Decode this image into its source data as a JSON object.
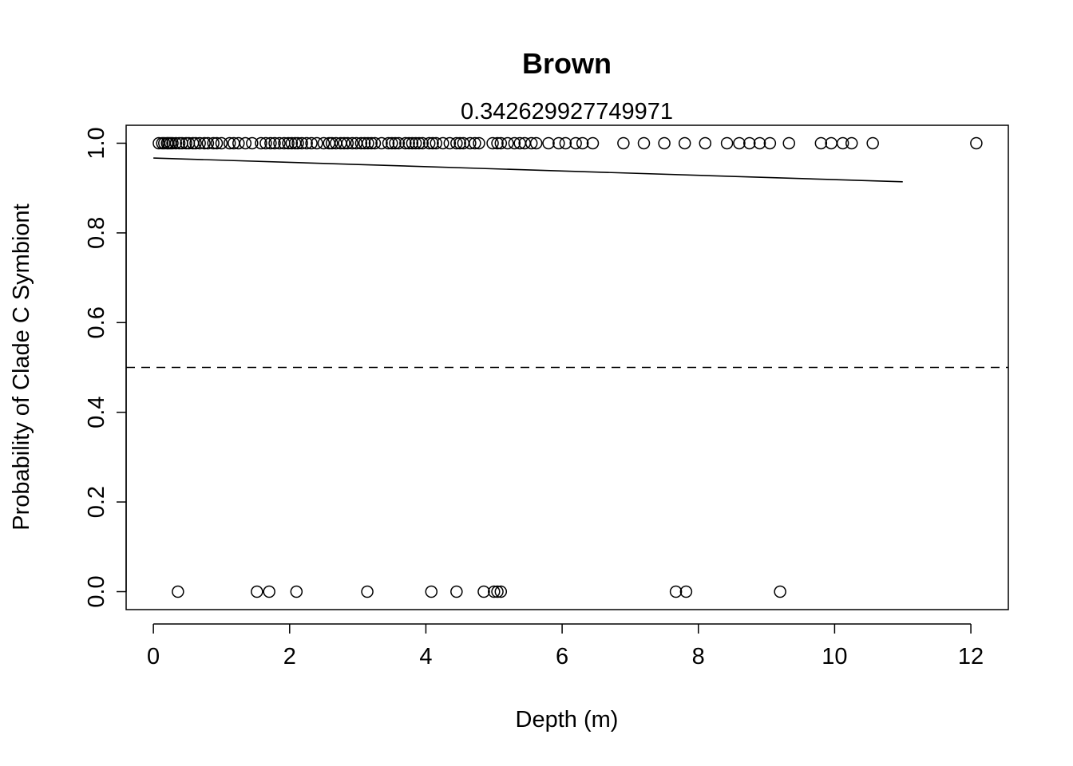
{
  "chart_data": {
    "type": "scatter",
    "title": "Brown",
    "subtitle": "0.342629927749971",
    "xlabel": "Depth (m)",
    "ylabel": "Probability of Clade C Symbiont",
    "xlim": [
      -0.4,
      12.55
    ],
    "ylim": [
      -0.04,
      1.04
    ],
    "x_ticks": [
      0,
      2,
      4,
      6,
      8,
      10,
      12
    ],
    "y_ticks": [
      0.0,
      0.2,
      0.4,
      0.6,
      0.8,
      1.0
    ],
    "x_tick_labels": [
      "0",
      "2",
      "4",
      "6",
      "8",
      "10",
      "12"
    ],
    "y_tick_labels": [
      "0.0",
      "0.2",
      "0.4",
      "0.6",
      "0.8",
      "1.0"
    ],
    "grid": false,
    "series": [
      {
        "kind": "points",
        "marker": "open-circle",
        "points": [
          [
            0.08,
            1
          ],
          [
            0.13,
            1
          ],
          [
            0.16,
            1
          ],
          [
            0.2,
            1
          ],
          [
            0.22,
            1
          ],
          [
            0.25,
            1
          ],
          [
            0.28,
            1
          ],
          [
            0.33,
            1
          ],
          [
            0.38,
            1
          ],
          [
            0.42,
            1
          ],
          [
            0.48,
            1
          ],
          [
            0.52,
            1
          ],
          [
            0.58,
            1
          ],
          [
            0.62,
            1
          ],
          [
            0.68,
            1
          ],
          [
            0.75,
            1
          ],
          [
            0.8,
            1
          ],
          [
            0.88,
            1
          ],
          [
            0.93,
            1
          ],
          [
            1.0,
            1
          ],
          [
            1.12,
            1
          ],
          [
            1.18,
            1
          ],
          [
            1.25,
            1
          ],
          [
            1.35,
            1
          ],
          [
            1.45,
            1
          ],
          [
            1.58,
            1
          ],
          [
            1.65,
            1
          ],
          [
            1.72,
            1
          ],
          [
            1.78,
            1
          ],
          [
            1.85,
            1
          ],
          [
            1.92,
            1
          ],
          [
            1.98,
            1
          ],
          [
            2.03,
            1
          ],
          [
            2.08,
            1
          ],
          [
            2.12,
            1
          ],
          [
            2.18,
            1
          ],
          [
            2.25,
            1
          ],
          [
            2.32,
            1
          ],
          [
            2.4,
            1
          ],
          [
            2.5,
            1
          ],
          [
            2.58,
            1
          ],
          [
            2.62,
            1
          ],
          [
            2.68,
            1
          ],
          [
            2.75,
            1
          ],
          [
            2.8,
            1
          ],
          [
            2.85,
            1
          ],
          [
            2.92,
            1
          ],
          [
            2.98,
            1
          ],
          [
            3.05,
            1
          ],
          [
            3.1,
            1
          ],
          [
            3.15,
            1
          ],
          [
            3.2,
            1
          ],
          [
            3.25,
            1
          ],
          [
            3.35,
            1
          ],
          [
            3.45,
            1
          ],
          [
            3.5,
            1
          ],
          [
            3.55,
            1
          ],
          [
            3.6,
            1
          ],
          [
            3.7,
            1
          ],
          [
            3.75,
            1
          ],
          [
            3.8,
            1
          ],
          [
            3.85,
            1
          ],
          [
            3.9,
            1
          ],
          [
            3.95,
            1
          ],
          [
            4.05,
            1
          ],
          [
            4.1,
            1
          ],
          [
            4.15,
            1
          ],
          [
            4.25,
            1
          ],
          [
            4.35,
            1
          ],
          [
            4.45,
            1
          ],
          [
            4.5,
            1
          ],
          [
            4.55,
            1
          ],
          [
            4.65,
            1
          ],
          [
            4.72,
            1
          ],
          [
            4.78,
            1
          ],
          [
            4.98,
            1
          ],
          [
            5.05,
            1
          ],
          [
            5.1,
            1
          ],
          [
            5.2,
            1
          ],
          [
            5.3,
            1
          ],
          [
            5.38,
            1
          ],
          [
            5.45,
            1
          ],
          [
            5.55,
            1
          ],
          [
            5.62,
            1
          ],
          [
            5.8,
            1
          ],
          [
            5.95,
            1
          ],
          [
            6.05,
            1
          ],
          [
            6.2,
            1
          ],
          [
            6.3,
            1
          ],
          [
            6.45,
            1
          ],
          [
            6.9,
            1
          ],
          [
            7.2,
            1
          ],
          [
            7.5,
            1
          ],
          [
            7.8,
            1
          ],
          [
            8.1,
            1
          ],
          [
            8.42,
            1
          ],
          [
            8.6,
            1
          ],
          [
            8.75,
            1
          ],
          [
            8.9,
            1
          ],
          [
            9.05,
            1
          ],
          [
            9.33,
            1
          ],
          [
            9.8,
            1
          ],
          [
            9.95,
            1
          ],
          [
            10.12,
            1
          ],
          [
            10.25,
            1
          ],
          [
            10.56,
            1
          ],
          [
            12.08,
            1
          ],
          [
            0.36,
            0
          ],
          [
            1.52,
            0
          ],
          [
            1.7,
            0
          ],
          [
            2.1,
            0
          ],
          [
            3.14,
            0
          ],
          [
            4.08,
            0
          ],
          [
            4.45,
            0
          ],
          [
            4.85,
            0
          ],
          [
            5.0,
            0
          ],
          [
            5.05,
            0
          ],
          [
            5.1,
            0
          ],
          [
            7.67,
            0
          ],
          [
            7.82,
            0
          ],
          [
            9.2,
            0
          ]
        ]
      },
      {
        "kind": "line",
        "line_style": "solid",
        "points": [
          [
            0,
            0.967
          ],
          [
            11.0,
            0.914
          ]
        ]
      },
      {
        "kind": "line",
        "line_style": "dashed",
        "points": [
          [
            -0.4,
            0.5
          ],
          [
            12.55,
            0.5
          ]
        ]
      }
    ]
  }
}
